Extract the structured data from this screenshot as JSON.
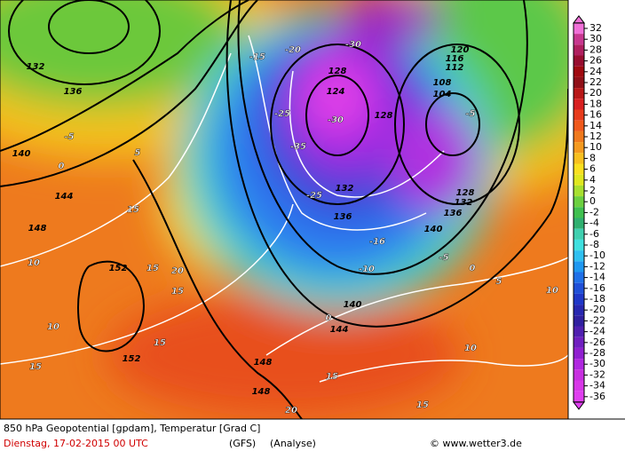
{
  "legend": {
    "ticks": [
      32,
      30,
      28,
      26,
      24,
      22,
      20,
      18,
      16,
      14,
      12,
      10,
      8,
      6,
      4,
      2,
      0,
      -2,
      -4,
      -6,
      -8,
      -10,
      -12,
      -14,
      -16,
      -18,
      -20,
      -22,
      -24,
      -26,
      -28,
      -30,
      -32,
      -34,
      -36
    ]
  },
  "map_labels": [
    "132",
    "136",
    "140",
    "144",
    "148",
    "152",
    "152",
    "128",
    "124",
    "128",
    "132",
    "136",
    "140",
    "140",
    "144",
    "148",
    "148",
    "128",
    "132",
    "136",
    "120",
    "116",
    "112",
    "108",
    "104",
    "-30",
    "-35",
    "-30",
    "-25",
    "-25",
    "-16",
    "-10",
    "-5",
    "0",
    "0",
    "5",
    "10",
    "10",
    "10",
    "10",
    "15",
    "15",
    "15",
    "15",
    "15",
    "15",
    "15",
    "20",
    "20",
    "-5",
    "0",
    "5",
    "-15",
    "-20",
    "-5"
  ],
  "footer": {
    "title": "850 hPa Geopotential [gpdam], Temperatur [Grad C]",
    "date": "Dienstag, 17-02-2015  00 UTC",
    "model": "(GFS)",
    "run": "(Analyse)",
    "credit": "© www.wetter3.de"
  }
}
